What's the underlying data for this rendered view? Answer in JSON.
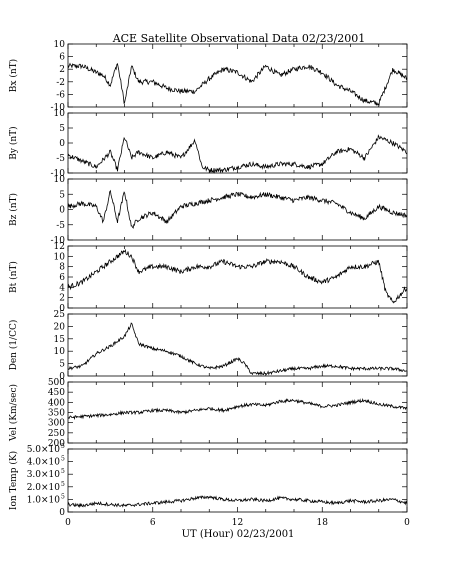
{
  "title": "ACE Satellite Observational Data   02/23/2001",
  "xlabel": "UT (Hour)   02/23/2001",
  "x_tick_labels": [
    "0",
    "6",
    "12",
    "18",
    "0"
  ],
  "colors": {
    "line": "#000000",
    "axes": "#000000",
    "background": "#ffffff"
  },
  "chart_data": [
    {
      "type": "line",
      "name": "bx",
      "ylabel": "Bx (nT)",
      "ylim": [
        -10,
        10
      ],
      "yticks": [
        10,
        6,
        2,
        -2,
        -6,
        -10
      ],
      "ytick_labels": [
        "10",
        "6",
        "2",
        "-2",
        "-6",
        "-10"
      ],
      "x": [
        0,
        1,
        2,
        2.5,
        3,
        3.5,
        4,
        4.5,
        5,
        6,
        7,
        8,
        9,
        10,
        11,
        12,
        13,
        14,
        15,
        16,
        17,
        18,
        19,
        20,
        21,
        22,
        23,
        24
      ],
      "values": [
        3,
        3,
        1,
        0,
        -3,
        4,
        -9,
        3,
        -2,
        -2,
        -4,
        -5,
        -5,
        -1,
        2,
        1,
        -2,
        3,
        0,
        2,
        3,
        1,
        -3,
        -5,
        -8,
        -9,
        2,
        -1
      ]
    },
    {
      "type": "line",
      "name": "by",
      "ylabel": "By (nT)",
      "ylim": [
        -10,
        10
      ],
      "yticks": [
        10,
        5,
        0,
        -5,
        -10
      ],
      "ytick_labels": [
        "10",
        "5",
        "0",
        "-5",
        "-10"
      ],
      "x": [
        0,
        1,
        2,
        3,
        3.5,
        4,
        4.5,
        5,
        6,
        7,
        8,
        9,
        9.5,
        10,
        11,
        12,
        13,
        14,
        15,
        16,
        17,
        18,
        19,
        20,
        21,
        22,
        23,
        24
      ],
      "values": [
        -4,
        -6,
        -8,
        -3,
        -9,
        2,
        -5,
        -3,
        -5,
        -3,
        -5,
        1,
        -8,
        -9,
        -9,
        -8,
        -7,
        -8,
        -7,
        -7,
        -8,
        -7,
        -3,
        -2,
        -5,
        2,
        0,
        -3
      ]
    },
    {
      "type": "line",
      "name": "bz",
      "ylabel": "Bz (nT)",
      "ylim": [
        -10,
        10
      ],
      "yticks": [
        10,
        5,
        0,
        -5,
        -10
      ],
      "ytick_labels": [
        "10",
        "5",
        "0",
        "-5",
        "-10"
      ],
      "x": [
        0,
        1,
        2,
        2.5,
        3,
        3.5,
        4,
        4.5,
        5,
        6,
        7,
        8,
        9,
        10,
        11,
        12,
        13,
        14,
        15,
        16,
        17,
        18,
        19,
        20,
        21,
        22,
        23,
        24
      ],
      "values": [
        1,
        2,
        1,
        -4,
        6,
        -4,
        6,
        -6,
        -3,
        -1,
        -4,
        1,
        2,
        3,
        4,
        5,
        4,
        5,
        4,
        3,
        4,
        3,
        2,
        -1,
        -3,
        1,
        -1,
        -2
      ]
    },
    {
      "type": "line",
      "name": "bt",
      "ylabel": "Bt (nT)",
      "ylim": [
        0,
        12
      ],
      "yticks": [
        12,
        10,
        8,
        6,
        4,
        2,
        0
      ],
      "ytick_labels": [
        "12",
        "10",
        "8",
        "6",
        "4",
        "2",
        "0"
      ],
      "x": [
        0,
        1,
        2,
        3,
        4,
        4.5,
        5,
        6,
        7,
        8,
        9,
        10,
        11,
        12,
        13,
        14,
        15,
        16,
        17,
        18,
        19,
        20,
        21,
        22,
        22.5,
        23,
        24
      ],
      "values": [
        4,
        5,
        7,
        9,
        11,
        10,
        7,
        8,
        8,
        7,
        8,
        8,
        9,
        8,
        8,
        9,
        9,
        8,
        6,
        5,
        6,
        8,
        8,
        9,
        3,
        1,
        4
      ]
    },
    {
      "type": "line",
      "name": "den",
      "ylabel": "Den (1/CC)",
      "ylim": [
        0,
        25
      ],
      "yticks": [
        25,
        20,
        15,
        10,
        5,
        0
      ],
      "ytick_labels": [
        "25",
        "20",
        "15",
        "10",
        "5",
        "0"
      ],
      "x": [
        0,
        1,
        2,
        3,
        4,
        4.5,
        5,
        6,
        7,
        8,
        9,
        10,
        11,
        12,
        12.5,
        13,
        14,
        15,
        16,
        17,
        18,
        19,
        20,
        21,
        22,
        23,
        24
      ],
      "values": [
        3,
        4,
        9,
        12,
        16,
        21,
        13,
        11,
        10,
        8,
        5,
        3,
        4,
        7,
        5,
        1,
        1,
        2,
        3,
        3,
        4,
        4,
        3,
        3,
        3,
        3,
        2
      ]
    },
    {
      "type": "line",
      "name": "vel",
      "ylabel": "Vel (Km/sec)",
      "ylim": [
        200,
        500
      ],
      "yticks": [
        500,
        450,
        400,
        350,
        300,
        250,
        200
      ],
      "ytick_labels": [
        "500",
        "450",
        "400",
        "350",
        "300",
        "250",
        "200"
      ],
      "x": [
        0,
        1,
        2,
        3,
        4,
        5,
        6,
        7,
        8,
        9,
        10,
        11,
        12,
        13,
        14,
        15,
        16,
        17,
        18,
        19,
        20,
        21,
        22,
        23,
        24
      ],
      "values": [
        325,
        330,
        335,
        340,
        350,
        350,
        360,
        360,
        350,
        360,
        370,
        360,
        380,
        390,
        385,
        405,
        410,
        395,
        380,
        385,
        400,
        410,
        390,
        380,
        370
      ]
    },
    {
      "type": "line",
      "name": "temp",
      "ylabel": "Ion Temp (K)",
      "ylim": [
        0,
        500000
      ],
      "yticks": [
        500000,
        400000,
        300000,
        200000,
        100000,
        0
      ],
      "ytick_labels": [
        "5.0×10",
        "4.0×10",
        "3.0×10",
        "2.0×10",
        "1.0×10",
        "0"
      ],
      "ytick_exponent": "5",
      "x": [
        0,
        1,
        2,
        3,
        4,
        5,
        6,
        7,
        8,
        9,
        10,
        11,
        12,
        13,
        14,
        15,
        16,
        17,
        18,
        19,
        20,
        21,
        22,
        23,
        24
      ],
      "values": [
        60000,
        50000,
        70000,
        60000,
        50000,
        60000,
        70000,
        80000,
        90000,
        110000,
        120000,
        100000,
        90000,
        100000,
        90000,
        110000,
        100000,
        90000,
        80000,
        70000,
        90000,
        80000,
        90000,
        100000,
        70000
      ]
    }
  ]
}
